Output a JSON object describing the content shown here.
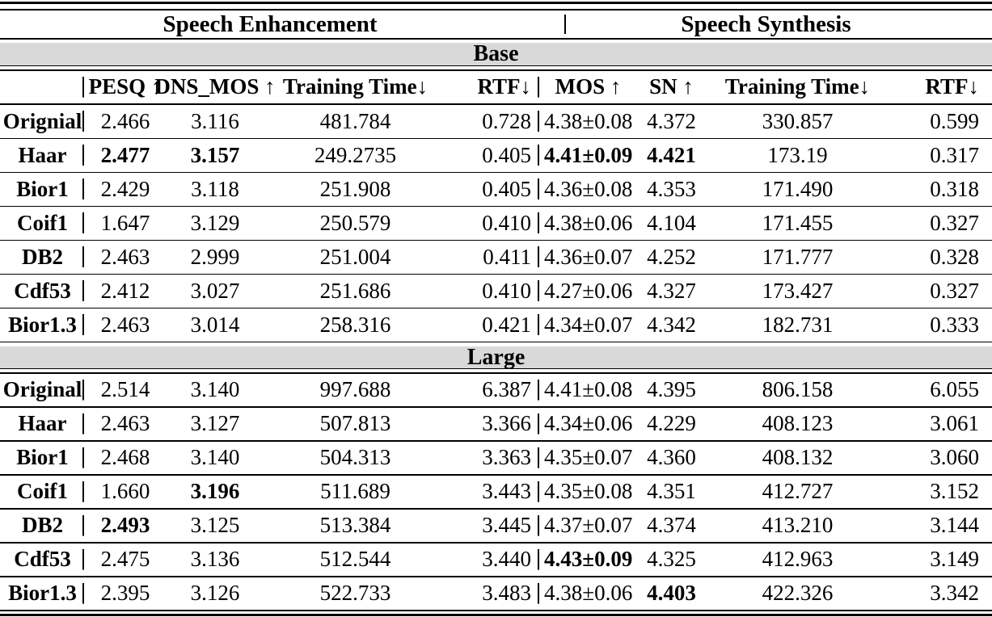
{
  "colors": {
    "text": "#000000",
    "background": "#ffffff",
    "band_background": "#d9d9d9"
  },
  "table": {
    "section_headers": {
      "left": "Speech Enhancement",
      "right": "Speech Synthesis"
    },
    "column_headers": [
      "",
      "PESQ ↑",
      "DNS_MOS ↑",
      "Training Time↓",
      "RTF↓",
      "MOS ↑",
      "SN ↑",
      "Training Time↓",
      "RTF↓"
    ],
    "column_keys": [
      "pesq",
      "dns_mos",
      "training_time_se",
      "rtf_se",
      "mos",
      "sn",
      "training_time_ss",
      "rtf_ss"
    ],
    "bands": [
      {
        "label": "Base",
        "rows": [
          {
            "name": "Orignial",
            "values": [
              "2.466",
              "3.116",
              "481.784",
              "0.728",
              "4.38±0.08",
              "4.372",
              "330.857",
              "0.599"
            ],
            "bold": []
          },
          {
            "name": "Haar",
            "values": [
              "2.477",
              "3.157",
              "249.2735",
              "0.405",
              "4.41±0.09",
              "4.421",
              "173.19",
              "0.317"
            ],
            "bold": [
              0,
              1,
              4,
              5
            ]
          },
          {
            "name": "Bior1",
            "values": [
              "2.429",
              "3.118",
              "251.908",
              "0.405",
              "4.36±0.08",
              "4.353",
              "171.490",
              "0.318"
            ],
            "bold": []
          },
          {
            "name": "Coif1",
            "values": [
              "1.647",
              "3.129",
              "250.579",
              "0.410",
              "4.38±0.06",
              "4.104",
              "171.455",
              "0.327"
            ],
            "bold": []
          },
          {
            "name": "DB2",
            "values": [
              "2.463",
              "2.999",
              "251.004",
              "0.411",
              "4.36±0.07",
              "4.252",
              "171.777",
              "0.328"
            ],
            "bold": []
          },
          {
            "name": "Cdf53",
            "values": [
              "2.412",
              "3.027",
              "251.686",
              "0.410",
              "4.27±0.06",
              "4.327",
              "173.427",
              "0.327"
            ],
            "bold": []
          },
          {
            "name": "Bior1.3",
            "values": [
              "2.463",
              "3.014",
              "258.316",
              "0.421",
              "4.34±0.07",
              "4.342",
              "182.731",
              "0.333"
            ],
            "bold": []
          }
        ]
      },
      {
        "label": "Large",
        "rows": [
          {
            "name": "Original",
            "values": [
              "2.514",
              "3.140",
              "997.688",
              "6.387",
              "4.41±0.08",
              "4.395",
              "806.158",
              "6.055"
            ],
            "bold": []
          },
          {
            "name": "Haar",
            "values": [
              "2.463",
              "3.127",
              "507.813",
              "3.366",
              "4.34±0.06",
              "4.229",
              "408.123",
              "3.061"
            ],
            "bold": []
          },
          {
            "name": "Bior1",
            "values": [
              "2.468",
              "3.140",
              "504.313",
              "3.363",
              "4.35±0.07",
              "4.360",
              "408.132",
              "3.060"
            ],
            "bold": []
          },
          {
            "name": "Coif1",
            "values": [
              "1.660",
              "3.196",
              "511.689",
              "3.443",
              "4.35±0.08",
              "4.351",
              "412.727",
              "3.152"
            ],
            "bold": [
              1
            ]
          },
          {
            "name": "DB2",
            "values": [
              "2.493",
              "3.125",
              "513.384",
              "3.445",
              "4.37±0.07",
              "4.374",
              "413.210",
              "3.144"
            ],
            "bold": [
              0
            ]
          },
          {
            "name": "Cdf53",
            "values": [
              "2.475",
              "3.136",
              "512.544",
              "3.440",
              "4.43±0.09",
              "4.325",
              "412.963",
              "3.149"
            ],
            "bold": [
              4
            ]
          },
          {
            "name": "Bior1.3",
            "values": [
              "2.395",
              "3.126",
              "522.733",
              "3.483",
              "4.38±0.06",
              "4.403",
              "422.326",
              "3.342"
            ],
            "bold": [
              5
            ]
          }
        ]
      }
    ]
  }
}
